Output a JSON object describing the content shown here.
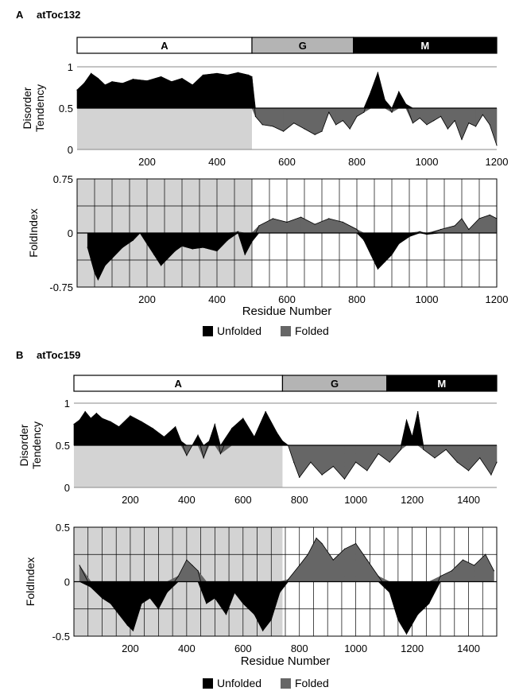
{
  "colors": {
    "unfolded": "#000000",
    "folded": "#666666",
    "region_shade": "#d3d3d3",
    "domain_A": "#ffffff",
    "domain_G": "#b4b4b4",
    "domain_M": "#000000"
  },
  "chart_data": [
    {
      "panel_letter": "A",
      "panel_title": "atToc132",
      "domains": [
        {
          "label": "A",
          "start": 0,
          "end": 500
        },
        {
          "label": "G",
          "start": 500,
          "end": 790
        },
        {
          "label": "M",
          "start": 790,
          "end": 1200
        }
      ],
      "disorder": {
        "type": "area",
        "ylabel": [
          "Disorder",
          "Tendency"
        ],
        "xlim": [
          0,
          1200
        ],
        "ylim": [
          0,
          1
        ],
        "yticks": [
          0,
          0.5,
          1
        ],
        "ytick_labels": [
          "0",
          "0.5",
          "1"
        ],
        "xticks": [
          200,
          400,
          600,
          800,
          1000,
          1200
        ],
        "xtick_labels": [
          "200",
          "400",
          "600",
          "800",
          "1000",
          "1200"
        ],
        "baseline": 0.5,
        "shaded_range": [
          0,
          500
        ],
        "x": [
          0,
          20,
          40,
          60,
          80,
          100,
          130,
          160,
          200,
          240,
          270,
          300,
          330,
          360,
          400,
          430,
          460,
          490,
          500,
          510,
          530,
          560,
          590,
          620,
          650,
          680,
          700,
          720,
          740,
          760,
          780,
          800,
          820,
          840,
          860,
          880,
          900,
          920,
          940,
          960,
          980,
          1000,
          1020,
          1040,
          1060,
          1080,
          1100,
          1120,
          1140,
          1160,
          1180,
          1200
        ],
        "y": [
          0.72,
          0.8,
          0.92,
          0.86,
          0.78,
          0.82,
          0.8,
          0.85,
          0.83,
          0.88,
          0.82,
          0.86,
          0.78,
          0.9,
          0.92,
          0.9,
          0.93,
          0.9,
          0.88,
          0.4,
          0.3,
          0.28,
          0.22,
          0.32,
          0.25,
          0.18,
          0.22,
          0.45,
          0.3,
          0.35,
          0.25,
          0.4,
          0.45,
          0.7,
          0.93,
          0.6,
          0.45,
          0.7,
          0.55,
          0.32,
          0.38,
          0.3,
          0.35,
          0.4,
          0.25,
          0.35,
          0.12,
          0.32,
          0.28,
          0.42,
          0.3,
          0.05
        ]
      },
      "foldindex": {
        "type": "area",
        "ylabel": "FoldIndex",
        "xlabel": "Residue Number",
        "xlim": [
          0,
          1200
        ],
        "ylim": [
          -0.75,
          0.75
        ],
        "yticks": [
          -0.75,
          0,
          0.75
        ],
        "ytick_labels": [
          "-0.75",
          "0",
          "0.75"
        ],
        "xticks": [
          200,
          400,
          600,
          800,
          1000,
          1200
        ],
        "xtick_labels": [
          "200",
          "400",
          "600",
          "800",
          "1000",
          "1200"
        ],
        "shaded_range": [
          0,
          500
        ],
        "x": [
          30,
          50,
          60,
          80,
          100,
          130,
          160,
          180,
          200,
          220,
          240,
          260,
          280,
          300,
          330,
          360,
          400,
          430,
          460,
          480,
          500,
          520,
          560,
          600,
          640,
          680,
          720,
          760,
          800,
          820,
          840,
          860,
          880,
          900,
          920,
          950,
          980,
          1000,
          1040,
          1080,
          1100,
          1120,
          1150,
          1180,
          1200
        ],
        "y": [
          -0.2,
          -0.55,
          -0.65,
          -0.45,
          -0.35,
          -0.2,
          -0.1,
          0,
          -0.15,
          -0.3,
          -0.45,
          -0.35,
          -0.25,
          -0.18,
          -0.22,
          -0.2,
          -0.25,
          -0.1,
          0.02,
          -0.3,
          -0.12,
          0.1,
          0.2,
          0.15,
          0.22,
          0.12,
          0.2,
          0.15,
          0.05,
          -0.1,
          -0.3,
          -0.5,
          -0.4,
          -0.3,
          -0.15,
          -0.05,
          0.02,
          -0.02,
          0.05,
          0.1,
          0.2,
          0.05,
          0.2,
          0.25,
          0.2
        ]
      },
      "legend": [
        {
          "label": "Unfolded",
          "color": "#000000"
        },
        {
          "label": "Folded",
          "color": "#666666"
        }
      ]
    },
    {
      "panel_letter": "B",
      "panel_title": "atToc159",
      "domains": [
        {
          "label": "A",
          "start": 0,
          "end": 740
        },
        {
          "label": "G",
          "start": 740,
          "end": 1110
        },
        {
          "label": "M",
          "start": 1110,
          "end": 1500
        }
      ],
      "disorder": {
        "type": "area",
        "ylabel": [
          "Disorder",
          "Tendency"
        ],
        "xlim": [
          0,
          1500
        ],
        "ylim": [
          0,
          1
        ],
        "yticks": [
          0,
          0.5,
          1
        ],
        "ytick_labels": [
          "0",
          "0.5",
          "1"
        ],
        "xticks": [
          200,
          400,
          600,
          800,
          1000,
          1200,
          1400
        ],
        "xtick_labels": [
          "200",
          "400",
          "600",
          "800",
          "1000",
          "1200",
          "1400"
        ],
        "baseline": 0.5,
        "shaded_range": [
          0,
          740
        ],
        "x": [
          0,
          20,
          40,
          60,
          80,
          100,
          130,
          160,
          200,
          240,
          280,
          320,
          360,
          380,
          400,
          420,
          440,
          460,
          480,
          500,
          520,
          560,
          600,
          640,
          680,
          720,
          740,
          760,
          780,
          800,
          840,
          880,
          920,
          960,
          1000,
          1040,
          1080,
          1120,
          1160,
          1180,
          1200,
          1220,
          1240,
          1280,
          1320,
          1360,
          1400,
          1440,
          1480,
          1500
        ],
        "y": [
          0.75,
          0.8,
          0.9,
          0.82,
          0.88,
          0.82,
          0.78,
          0.72,
          0.85,
          0.78,
          0.7,
          0.6,
          0.72,
          0.55,
          0.38,
          0.5,
          0.62,
          0.35,
          0.55,
          0.75,
          0.4,
          0.7,
          0.82,
          0.6,
          0.9,
          0.65,
          0.55,
          0.5,
          0.3,
          0.12,
          0.3,
          0.15,
          0.25,
          0.1,
          0.3,
          0.2,
          0.4,
          0.3,
          0.45,
          0.8,
          0.6,
          0.9,
          0.45,
          0.35,
          0.45,
          0.3,
          0.2,
          0.35,
          0.15,
          0.3
        ]
      },
      "foldindex": {
        "type": "area",
        "ylabel": "FoldIndex",
        "xlabel": "Residue Number",
        "xlim": [
          0,
          1500
        ],
        "ylim": [
          -0.5,
          0.5
        ],
        "yticks": [
          -0.5,
          0,
          0.5
        ],
        "ytick_labels": [
          "-0.5",
          "0",
          "0.5"
        ],
        "xticks": [
          200,
          400,
          600,
          800,
          1000,
          1200,
          1400
        ],
        "xtick_labels": [
          "200",
          "400",
          "600",
          "800",
          "1000",
          "1200",
          "1400"
        ],
        "shaded_range": [
          0,
          740
        ],
        "x": [
          20,
          60,
          100,
          130,
          160,
          190,
          210,
          240,
          270,
          300,
          330,
          370,
          400,
          420,
          440,
          470,
          500,
          540,
          570,
          600,
          640,
          670,
          700,
          730,
          760,
          800,
          830,
          860,
          880,
          920,
          960,
          1000,
          1040,
          1080,
          1120,
          1150,
          1180,
          1220,
          1260,
          1300,
          1340,
          1380,
          1420,
          1460,
          1490
        ],
        "y": [
          0.15,
          -0.05,
          -0.15,
          -0.2,
          -0.3,
          -0.4,
          -0.45,
          -0.2,
          -0.15,
          -0.25,
          -0.1,
          0.05,
          0.2,
          0.15,
          0.1,
          -0.2,
          -0.15,
          -0.3,
          -0.1,
          -0.2,
          -0.3,
          -0.45,
          -0.35,
          -0.1,
          0.02,
          0.15,
          0.25,
          0.4,
          0.35,
          0.2,
          0.3,
          0.35,
          0.2,
          0.05,
          -0.1,
          -0.35,
          -0.48,
          -0.3,
          -0.2,
          0.05,
          0.1,
          0.2,
          0.15,
          0.25,
          0.1
        ]
      },
      "legend": [
        {
          "label": "Unfolded",
          "color": "#000000"
        },
        {
          "label": "Folded",
          "color": "#666666"
        }
      ]
    }
  ]
}
